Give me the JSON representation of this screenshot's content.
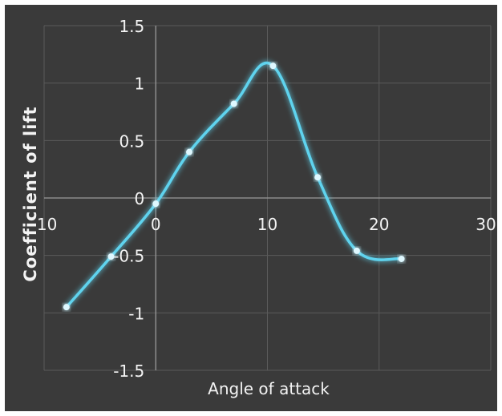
{
  "chart_data": {
    "type": "line",
    "title": "",
    "xlabel": "Angle of attack",
    "ylabel": "Coefficient of lift",
    "xlim": [
      -10,
      30
    ],
    "ylim": [
      -1.5,
      1.5
    ],
    "x_ticks": [
      "-10",
      "0",
      "10",
      "20",
      "30"
    ],
    "y_ticks": [
      "-1.5",
      "-1",
      "-0.5",
      "0",
      "0.5",
      "1",
      "1.5"
    ],
    "grid": true,
    "legend": "none",
    "background_color": "#3a3a3a",
    "grid_color": "#5a5a5a",
    "text_color": "#f3f3f3",
    "series": [
      {
        "color": "#5fd3ee",
        "x": [
          -8,
          -4,
          0,
          3,
          7,
          10.5,
          14.5,
          18,
          22
        ],
        "y": [
          -0.95,
          -0.51,
          -0.05,
          0.4,
          0.82,
          1.15,
          0.18,
          -0.46,
          -0.53
        ]
      }
    ]
  }
}
